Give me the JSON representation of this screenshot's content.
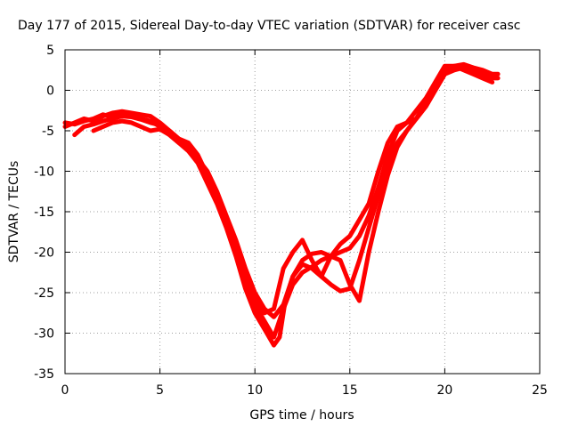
{
  "chart_data": {
    "type": "line",
    "title": "Day 177 of 2015, Sidereal Day-to-day VTEC variation (SDTVAR) for receiver casc",
    "xlabel": "GPS time / hours",
    "ylabel": "SDTVAR / TECUs",
    "xlim": [
      0,
      25
    ],
    "ylim": [
      -35,
      5
    ],
    "xticks": [
      0,
      5,
      10,
      15,
      20,
      25
    ],
    "yticks": [
      5,
      0,
      -5,
      -10,
      -15,
      -20,
      -25,
      -30,
      -35
    ],
    "grid": true,
    "legend": "none",
    "color": "#ff0000",
    "series": [
      {
        "x": [
          0,
          0.5,
          1,
          1.5,
          2,
          2.5,
          3,
          3.5,
          4,
          4.5,
          5,
          5.5,
          6,
          6.5,
          7,
          7.5,
          8,
          8.5,
          9,
          9.5,
          10,
          10.5,
          11,
          11.5,
          12,
          12.5,
          13,
          13.5,
          14,
          14.5,
          15,
          15.5,
          16,
          16.5,
          17,
          17.5,
          18,
          18.5,
          19,
          19.5,
          20,
          20.5,
          21,
          21.5,
          22,
          22.5,
          22.8
        ],
        "y": [
          -4.5,
          -4,
          -3.5,
          -3.8,
          -3.2,
          -2.8,
          -2.6,
          -2.8,
          -3,
          -3.2,
          -4,
          -5,
          -6,
          -6.5,
          -8,
          -10.5,
          -13,
          -16,
          -19.5,
          -23,
          -26.5,
          -28.5,
          -30.5,
          -27,
          -24,
          -22.5,
          -21.8,
          -21,
          -20.5,
          -20,
          -19.5,
          -18,
          -15.5,
          -12,
          -8,
          -5,
          -4,
          -3.5,
          -2,
          0,
          2,
          2.5,
          2.8,
          2.5,
          2,
          1.5,
          1.5
        ]
      },
      {
        "x": [
          0,
          0.5,
          1,
          1.5,
          2,
          2.5,
          3,
          3.5,
          4,
          4.5,
          5,
          5.5,
          6,
          6.5,
          7,
          7.5,
          8,
          8.5,
          9,
          9.5,
          10,
          10.5,
          11,
          11.3,
          11.6,
          12,
          12.5,
          13,
          13.5,
          14,
          14.5,
          15,
          15.5,
          16,
          16.5,
          17,
          17.5,
          18,
          18.5,
          19,
          19.5,
          20,
          20.5,
          21,
          21.5,
          22,
          22.5,
          22.8
        ],
        "y": [
          -4,
          -4.2,
          -3.8,
          -3.5,
          -3,
          -3.3,
          -3,
          -3.2,
          -3.5,
          -3.8,
          -4.5,
          -5.5,
          -6.5,
          -7.5,
          -9,
          -11.5,
          -14,
          -17,
          -20.5,
          -24.5,
          -27.5,
          -29.5,
          -31.5,
          -30.5,
          -26,
          -23,
          -21.5,
          -22,
          -23,
          -24,
          -24.8,
          -24.5,
          -21,
          -17,
          -13,
          -9,
          -6.5,
          -5,
          -3.5,
          -1.5,
          0.5,
          2.5,
          3,
          3.2,
          2.8,
          2.5,
          2,
          2
        ]
      },
      {
        "x": [
          0.5,
          1,
          1.5,
          2,
          2.5,
          3,
          3.5,
          4,
          4.5,
          5,
          5.5,
          6,
          6.5,
          7,
          7.5,
          8,
          8.5,
          9,
          9.5,
          10,
          10.5,
          11,
          11.5,
          12,
          12.5,
          13,
          13.5,
          14,
          14.5,
          15,
          15.5,
          16,
          16.5,
          17,
          17.5,
          18,
          18.5,
          19,
          19.5,
          20,
          20.5,
          21,
          21.5,
          22,
          22.5
        ],
        "y": [
          -5.5,
          -4.5,
          -4.2,
          -3.8,
          -3.5,
          -3.2,
          -3.3,
          -3.6,
          -4,
          -4.3,
          -5,
          -6,
          -7,
          -8.5,
          -11,
          -13.5,
          -16.5,
          -20,
          -23.5,
          -26,
          -27.5,
          -27,
          -22,
          -20,
          -18.5,
          -21,
          -23,
          -20.5,
          -19,
          -18,
          -16,
          -14,
          -10,
          -6.5,
          -4.5,
          -4,
          -2.5,
          -1,
          1,
          3,
          3,
          2.5,
          2,
          1.5,
          1
        ]
      },
      {
        "x": [
          1.5,
          2,
          2.5,
          3,
          3.5,
          4,
          4.5,
          5,
          5.5,
          6,
          6.5,
          7,
          7.5,
          8,
          8.5,
          9,
          9.5,
          10,
          10.5,
          11,
          11.5,
          12,
          12.5,
          13,
          13.5,
          14,
          14.5,
          15,
          15.5,
          16,
          16.5,
          17,
          17.5,
          18,
          18.5,
          19,
          19.5,
          20,
          20.5,
          21,
          21.5,
          22,
          22.5
        ],
        "y": [
          -5,
          -4.5,
          -4,
          -3.8,
          -4,
          -4.5,
          -5,
          -4.8,
          -5.5,
          -6.5,
          -7,
          -8.5,
          -10,
          -12.5,
          -15.5,
          -18.5,
          -22,
          -25,
          -27,
          -28,
          -26.5,
          -23,
          -21,
          -20.2,
          -20,
          -20.5,
          -21,
          -24,
          -26,
          -20,
          -15,
          -10.5,
          -7,
          -5,
          -3.5,
          -2,
          0,
          2,
          2.8,
          3,
          2.5,
          2,
          1.8
        ]
      }
    ]
  }
}
